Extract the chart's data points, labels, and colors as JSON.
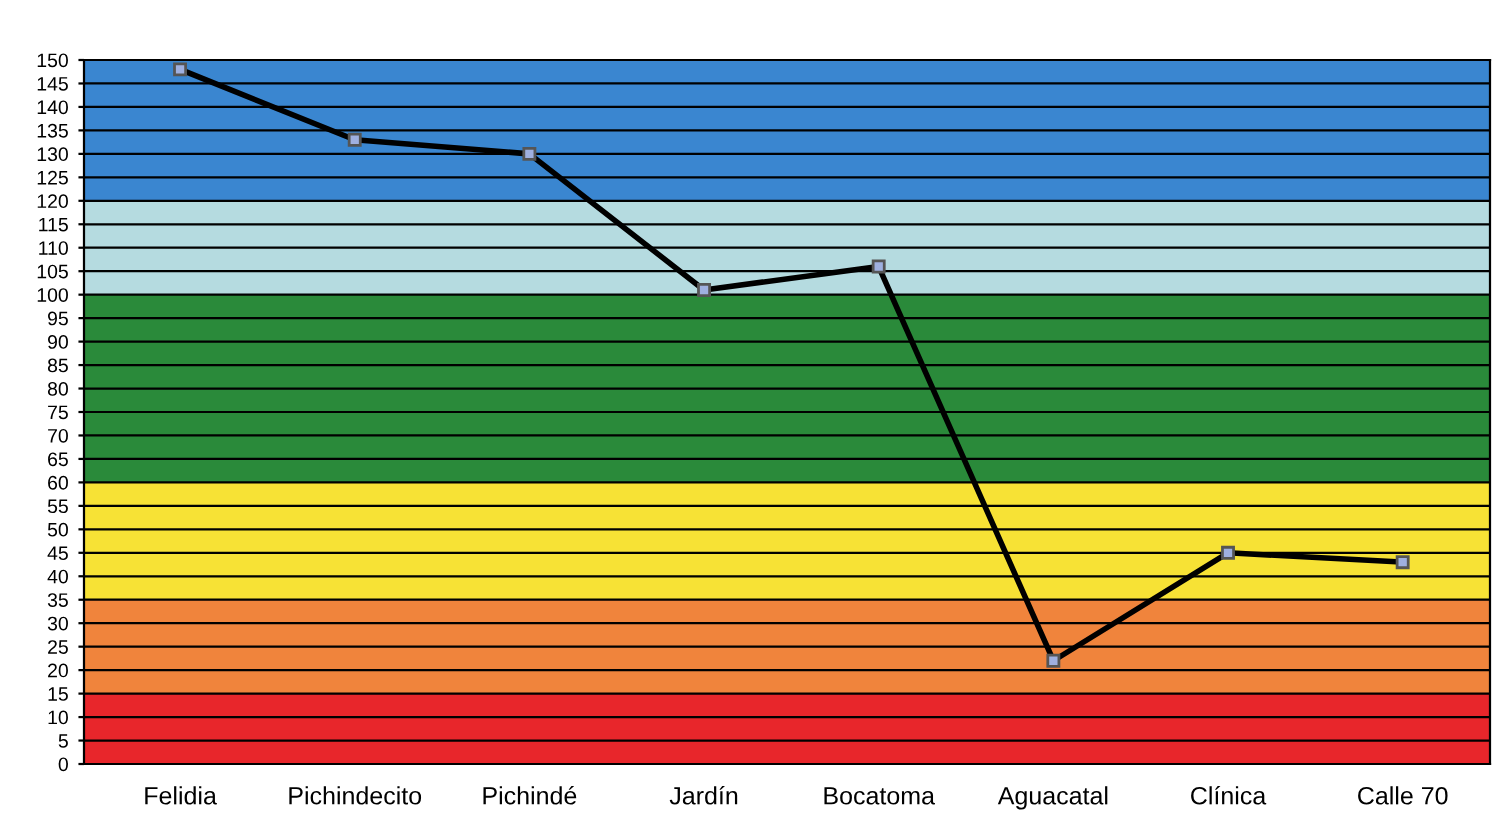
{
  "chart_data": {
    "type": "line",
    "categories": [
      "Felidia",
      "Pichindecito",
      "Pichindé",
      "Jardín",
      "Bocatoma",
      "Aguacatal",
      "Clínica",
      "Calle 70"
    ],
    "series": [
      {
        "color": "#000000",
        "values": [
          148,
          133,
          130,
          101,
          106,
          22,
          45,
          43
        ]
      }
    ],
    "ylim": [
      0,
      150
    ],
    "yticks": [
      0,
      5,
      10,
      15,
      20,
      25,
      30,
      35,
      40,
      45,
      50,
      55,
      60,
      65,
      70,
      75,
      80,
      85,
      90,
      95,
      100,
      105,
      110,
      115,
      120,
      125,
      130,
      135,
      140,
      145,
      150
    ],
    "grid": "y",
    "marker": "square",
    "line_style": "solid",
    "bands": [
      {
        "axis": "y",
        "from": 0,
        "to": 15,
        "color": "#e8262b"
      },
      {
        "axis": "y",
        "from": 15,
        "to": 35,
        "color": "#f0843c"
      },
      {
        "axis": "y",
        "from": 35,
        "to": 60,
        "color": "#f7e235"
      },
      {
        "axis": "y",
        "from": 60,
        "to": 100,
        "color": "#2a8a3a"
      },
      {
        "axis": "y",
        "from": 100,
        "to": 120,
        "color": "#b5dbe0"
      },
      {
        "axis": "y",
        "from": 120,
        "to": 150,
        "color": "#3a86d0"
      }
    ]
  }
}
